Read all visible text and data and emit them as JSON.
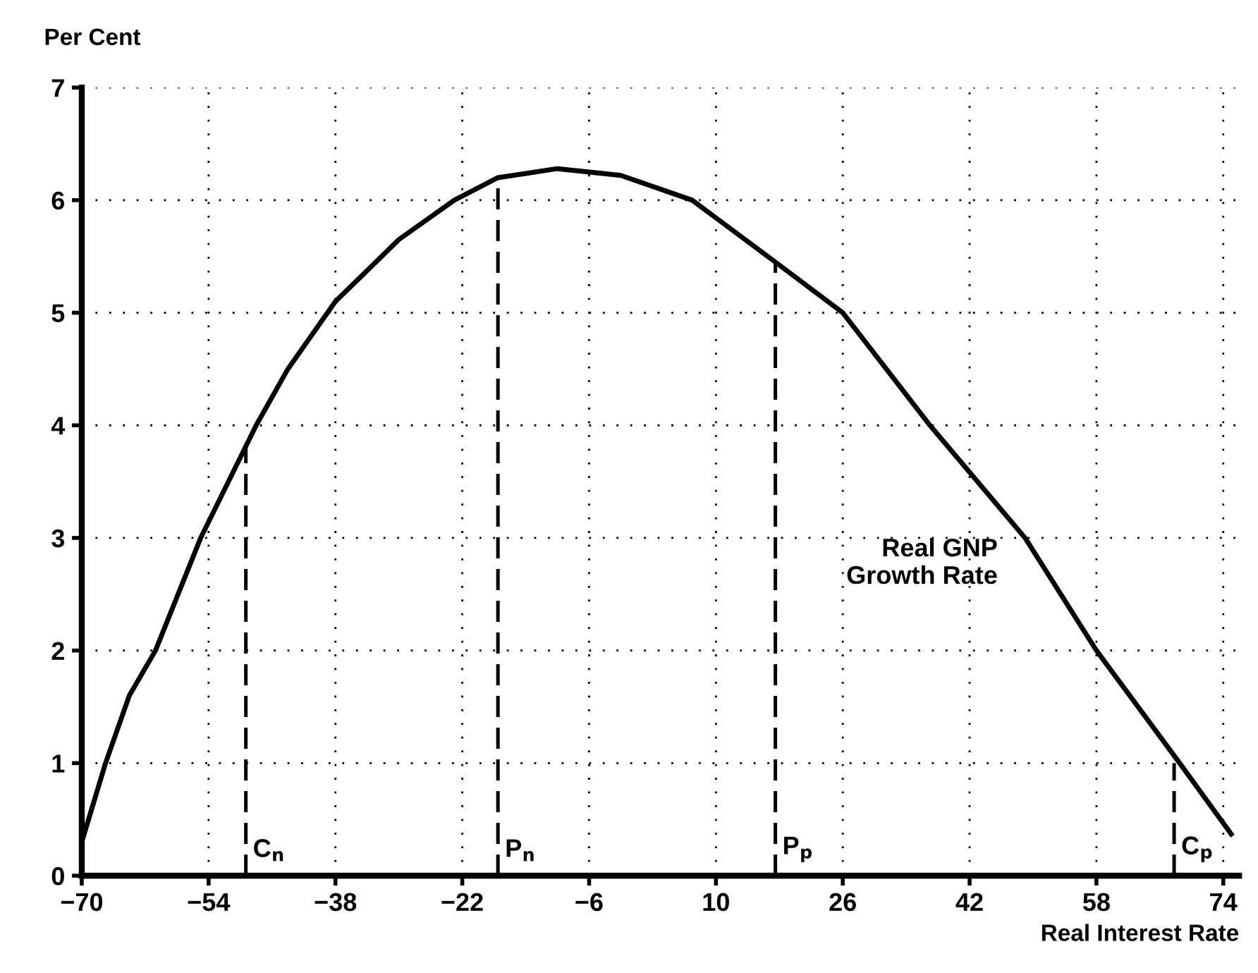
{
  "chart_data": {
    "type": "line",
    "ylabel": "Per Cent",
    "xlabel": "Real Interest Rate",
    "xlim": [
      -70,
      76
    ],
    "xticks": [
      -70,
      -54,
      -38,
      -22,
      -6,
      10,
      26,
      42,
      58,
      74
    ],
    "ylim": [
      0,
      7
    ],
    "yticks": [
      0,
      1,
      2,
      3,
      4,
      5,
      6,
      7
    ],
    "grid": true,
    "marker": "none",
    "series": [
      {
        "name": "Real GNP\nGrowth Rate",
        "color": "#000000",
        "line_style": "solid",
        "x": [
          -70,
          -67,
          -64,
          -60.7,
          -55,
          -48,
          -44,
          -38,
          -30,
          -23,
          -17.5,
          -10,
          -2,
          7,
          17.5,
          26,
          37,
          49,
          58,
          68.5,
          75
        ],
        "values": [
          0.3,
          1.0,
          1.6,
          2.0,
          3.0,
          4.0,
          4.5,
          5.1,
          5.65,
          6.0,
          6.2,
          6.28,
          6.22,
          6.0,
          5.45,
          5.0,
          4.0,
          3.0,
          2.0,
          1.0,
          0.37
        ]
      },
      {
        "name": "C$_{n}$",
        "color": "#000000",
        "line_style": "dashed",
        "x": [
          -49.3,
          -49.3
        ],
        "values": [
          0,
          3.83
        ]
      },
      {
        "name": "P$_{n}$",
        "color": "#000000",
        "line_style": "dashed",
        "x": [
          -17.5,
          -17.5
        ],
        "values": [
          0,
          6.2
        ]
      },
      {
        "name": "P$_{p}$",
        "color": "#000000",
        "line_style": "dashed",
        "x": [
          17.5,
          17.5
        ],
        "values": [
          0,
          5.45
        ]
      },
      {
        "name": "C$_{p}$",
        "color": "#000000",
        "line_style": "dashed",
        "x": [
          67.8,
          67.8
        ],
        "values": [
          0,
          1.0
        ]
      }
    ]
  }
}
